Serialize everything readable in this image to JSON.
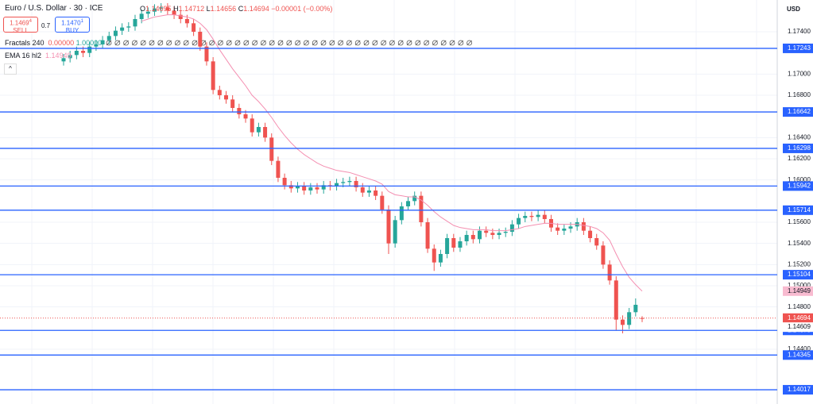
{
  "header": {
    "symbol": "Euro / U.S. Dollar · 30 · ICE",
    "o": "O",
    "h": "H",
    "l": "L",
    "c": "C",
    "change": "−0.00001 (−0.00%)",
    "sell_price": "1.1469",
    "sell_pip": "4",
    "sell": "SELL",
    "buy_price": "1.1470",
    "buy_pip": "1",
    "buy": "BUY",
    "spread": "0.7",
    "fractals": "Fractals 240",
    "fractal_down": "0.00000",
    "fractal_up": "1.00000",
    "ema": "EMA 16 hl2",
    "currency": "USD"
  },
  "chart_data": {
    "type": "candlestick",
    "open": [
      1.1712,
      1.1715,
      1.1718,
      1.1722,
      1.172,
      1.1726,
      1.1728,
      1.1732,
      1.1736,
      1.1741,
      1.1744,
      1.1745,
      1.1752,
      1.1757,
      1.1759,
      1.1762,
      1.1763,
      1.176,
      1.1756,
      1.1752,
      1.1748,
      1.174,
      1.1726,
      1.1712,
      1.1685,
      1.168,
      1.1676,
      1.1668,
      1.1662,
      1.1658,
      1.1645,
      1.165,
      1.164,
      1.1618,
      1.1602,
      1.1595,
      1.1592,
      1.1594,
      1.159,
      1.1593,
      1.1591,
      1.1595,
      1.1594,
      1.1597,
      1.1598,
      1.1599,
      1.1593,
      1.1588,
      1.159,
      1.1585,
      1.1572,
      1.154,
      1.1562,
      1.1575,
      1.158,
      1.1585,
      1.156,
      1.1535,
      1.1522,
      1.153,
      1.1545,
      1.1536,
      1.1542,
      1.1548,
      1.1544,
      1.1552,
      1.155,
      1.1548,
      1.155,
      1.1551,
      1.1558,
      1.1564,
      1.1566,
      1.1565,
      1.1567,
      1.1563,
      1.1555,
      1.1552,
      1.1554,
      1.1556,
      1.156,
      1.1552,
      1.1545,
      1.1538,
      1.152,
      1.1505,
      1.1468,
      1.1463,
      1.1475,
      1.14695
    ],
    "high": [
      1.1719,
      1.1722,
      1.1726,
      1.1726,
      1.173,
      1.1732,
      1.1736,
      1.174,
      1.1745,
      1.1748,
      1.1749,
      1.1756,
      1.1761,
      1.1763,
      1.1766,
      1.1767,
      1.1767,
      1.1764,
      1.176,
      1.1756,
      1.1752,
      1.1744,
      1.173,
      1.1716,
      1.1689,
      1.1684,
      1.168,
      1.1672,
      1.1666,
      1.1662,
      1.1654,
      1.1654,
      1.1644,
      1.1622,
      1.1606,
      1.1599,
      1.1598,
      1.1598,
      1.1597,
      1.1597,
      1.1599,
      1.1599,
      1.1601,
      1.1602,
      1.1603,
      1.1603,
      1.1597,
      1.1594,
      1.1594,
      1.1589,
      1.1576,
      1.1566,
      1.1579,
      1.1584,
      1.1589,
      1.1589,
      1.1564,
      1.1539,
      1.1534,
      1.1549,
      1.1549,
      1.1546,
      1.1552,
      1.1552,
      1.1556,
      1.1556,
      1.1554,
      1.1554,
      1.1555,
      1.1562,
      1.1568,
      1.157,
      1.157,
      1.1571,
      1.1571,
      1.1567,
      1.1559,
      1.1558,
      1.156,
      1.1564,
      1.1564,
      1.1556,
      1.1549,
      1.1542,
      1.1524,
      1.1509,
      1.1472,
      1.1479,
      1.1488,
      1.14712
    ],
    "low": [
      1.1708,
      1.1711,
      1.1714,
      1.1716,
      1.1716,
      1.1722,
      1.1724,
      1.1728,
      1.1732,
      1.1737,
      1.174,
      1.1741,
      1.1748,
      1.1753,
      1.1755,
      1.1758,
      1.1756,
      1.1752,
      1.1748,
      1.1744,
      1.1736,
      1.1722,
      1.1708,
      1.1681,
      1.1676,
      1.1672,
      1.1664,
      1.1658,
      1.1654,
      1.1641,
      1.1641,
      1.1636,
      1.1614,
      1.1598,
      1.1591,
      1.1588,
      1.1588,
      1.1586,
      1.1586,
      1.1587,
      1.1587,
      1.159,
      1.159,
      1.1593,
      1.1594,
      1.1589,
      1.1584,
      1.1584,
      1.1581,
      1.1568,
      1.153,
      1.1536,
      1.1558,
      1.1571,
      1.1576,
      1.1556,
      1.1531,
      1.1514,
      1.1518,
      1.1526,
      1.1532,
      1.1532,
      1.1538,
      1.154,
      1.154,
      1.1546,
      1.1544,
      1.1544,
      1.1546,
      1.1547,
      1.1554,
      1.156,
      1.1561,
      1.1561,
      1.1559,
      1.1551,
      1.1548,
      1.1548,
      1.155,
      1.1552,
      1.1548,
      1.1541,
      1.1534,
      1.1516,
      1.1501,
      1.1458,
      1.1455,
      1.1459,
      1.1471,
      1.14656
    ],
    "close": [
      1.1715,
      1.1718,
      1.1722,
      1.172,
      1.1726,
      1.1728,
      1.1732,
      1.1736,
      1.1741,
      1.1744,
      1.1745,
      1.1752,
      1.1757,
      1.1759,
      1.1762,
      1.1763,
      1.176,
      1.1756,
      1.1752,
      1.1748,
      1.174,
      1.1726,
      1.1712,
      1.1685,
      1.168,
      1.1676,
      1.1668,
      1.1662,
      1.1658,
      1.1645,
      1.165,
      1.164,
      1.1618,
      1.1602,
      1.1595,
      1.1592,
      1.1594,
      1.159,
      1.1593,
      1.1591,
      1.1595,
      1.1594,
      1.1597,
      1.1598,
      1.1599,
      1.1593,
      1.1588,
      1.159,
      1.1585,
      1.1572,
      1.154,
      1.1562,
      1.1575,
      1.158,
      1.1585,
      1.156,
      1.1535,
      1.1522,
      1.153,
      1.1545,
      1.1536,
      1.1542,
      1.1548,
      1.1544,
      1.1552,
      1.155,
      1.1548,
      1.155,
      1.1551,
      1.1558,
      1.1564,
      1.1566,
      1.1565,
      1.1567,
      1.1563,
      1.1555,
      1.1552,
      1.1554,
      1.1556,
      1.156,
      1.1552,
      1.1545,
      1.1538,
      1.152,
      1.1505,
      1.1468,
      1.1463,
      1.1475,
      1.1482,
      1.14694
    ],
    "ema": {
      "color": "#f48fb1",
      "values": [
        null,
        null,
        null,
        null,
        null,
        null,
        null,
        null,
        null,
        null,
        null,
        null,
        1.175,
        1.1752,
        1.1754,
        1.1755,
        1.1756,
        1.1756,
        1.1755,
        1.1754,
        1.1752,
        1.1748,
        1.1742,
        1.1733,
        1.1723,
        1.1714,
        1.1705,
        1.1697,
        1.1689,
        1.168,
        1.1674,
        1.1667,
        1.1659,
        1.165,
        1.1642,
        1.1635,
        1.1629,
        1.1624,
        1.162,
        1.1616,
        1.1613,
        1.1611,
        1.1609,
        1.1608,
        1.1607,
        1.1605,
        1.1603,
        1.1601,
        1.1599,
        1.1596,
        1.1589,
        1.1586,
        1.1585,
        1.1584,
        1.1584,
        1.1581,
        1.1576,
        1.157,
        1.1565,
        1.1561,
        1.1557,
        1.1555,
        1.1554,
        1.1553,
        1.1553,
        1.1553,
        1.1552,
        1.1552,
        1.1552,
        1.1553,
        1.1554,
        1.1556,
        1.1557,
        1.1558,
        1.1559,
        1.1559,
        1.1558,
        1.1558,
        1.1558,
        1.1558,
        1.1557,
        1.1556,
        1.1554,
        1.155,
        1.1543,
        1.153,
        1.1518,
        1.1508,
        1.1501,
        1.14949
      ]
    },
    "up_color": "#26a69a",
    "down_color": "#ef5350",
    "ylim": [
      1.138825,
      1.177
    ],
    "yticks": [
      {
        "value": 1.174,
        "label": "1.17400"
      },
      {
        "value": 1.17,
        "label": "1.17000"
      },
      {
        "value": 1.168,
        "label": "1.16800"
      },
      {
        "value": 1.164,
        "label": "1.16400"
      },
      {
        "value": 1.162,
        "label": "1.16200"
      },
      {
        "value": 1.16,
        "label": "1.16000"
      },
      {
        "value": 1.156,
        "label": "1.15600"
      },
      {
        "value": 1.154,
        "label": "1.15400"
      },
      {
        "value": 1.152,
        "label": "1.15200"
      },
      {
        "value": 1.15,
        "label": "1.15000"
      },
      {
        "value": 1.148,
        "label": "1.14800"
      },
      {
        "value": 1.144,
        "label": "1.14400"
      }
    ],
    "levels": [
      1.17243,
      1.16642,
      1.16298,
      1.15942,
      1.15714,
      1.15104,
      1.14578,
      1.14345,
      1.14017
    ],
    "level_color": "#2962ff",
    "last_price": 1.14694,
    "ema_last": 1.14949,
    "bid_marker": 1.14609,
    "grid": true
  }
}
